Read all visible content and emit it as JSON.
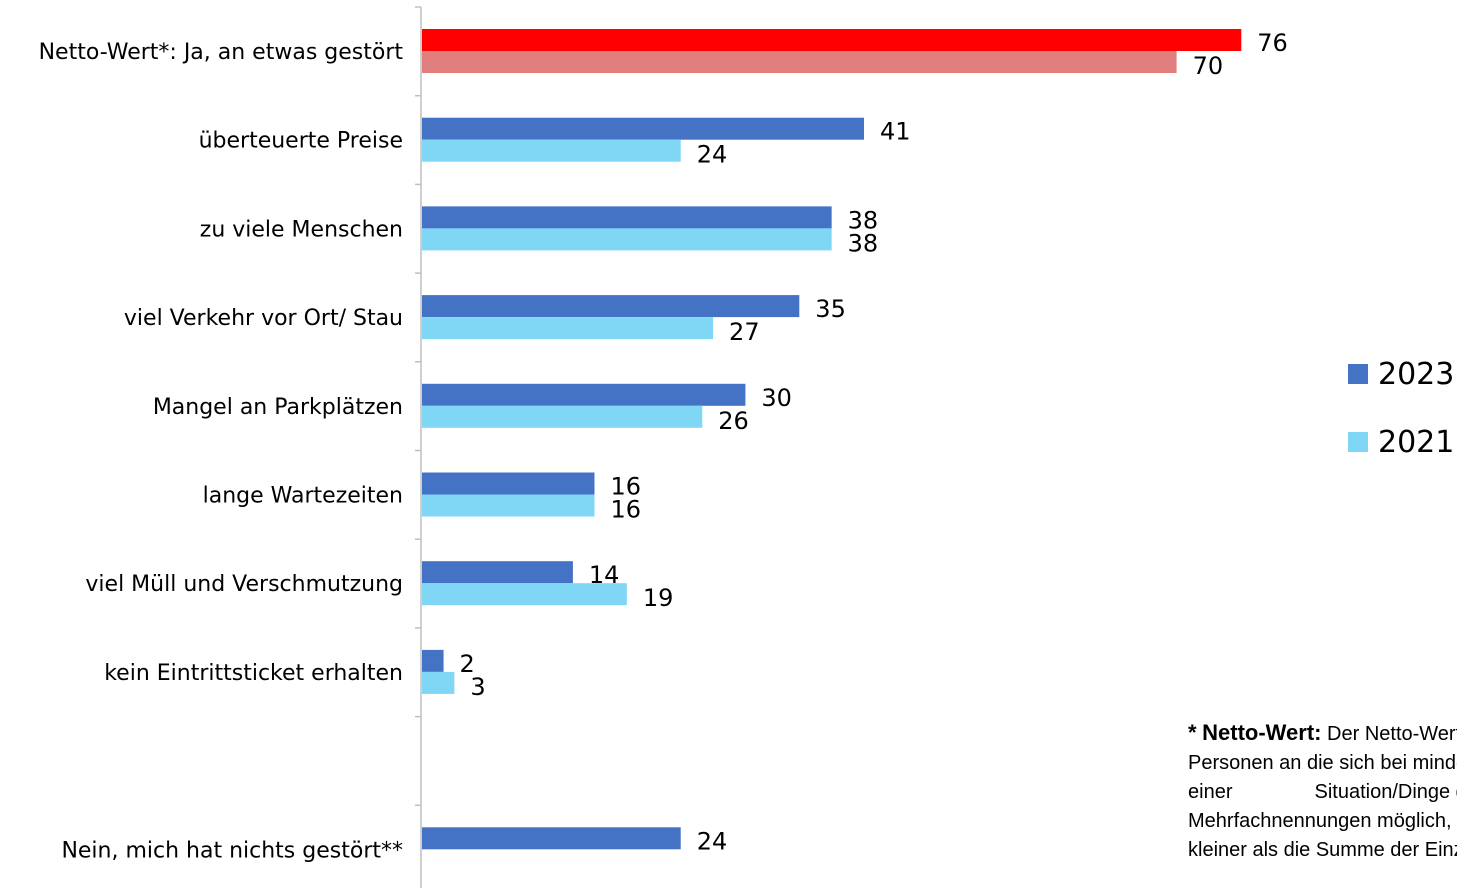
{
  "chart_data": {
    "type": "bar",
    "orientation": "horizontal",
    "categories": [
      "Netto-Wert*: Ja, an etwas gestört",
      "überteuerte Preise",
      "zu viele Menschen",
      "viel Verkehr vor Ort/ Stau",
      "Mangel an Parkplätzen",
      "lange Wartezeiten",
      "viel Müll und Verschmutzung",
      "kein Eintrittsticket erhalten",
      "",
      "Nein, mich hat nichts gestört**"
    ],
    "series": [
      {
        "name": "2023",
        "color": "#4472C4",
        "values": [
          76,
          41,
          38,
          35,
          30,
          16,
          14,
          2,
          null,
          24
        ]
      },
      {
        "name": "2021",
        "color": "#7FD6F5",
        "values": [
          70,
          24,
          38,
          27,
          26,
          16,
          19,
          3,
          null,
          null
        ]
      }
    ],
    "highlight_colors": {
      "2023": "#FF0000",
      "2021": "#E07E7E"
    },
    "highlight_category_index": 0,
    "xlim": [
      0,
      100
    ],
    "legend": "right",
    "grid": false
  },
  "footnote": {
    "star": "*",
    "bold_term": "Netto-Wert:",
    "line1_rest": "Der Netto-Wert gibt den Anteil der",
    "line2": "Personen an die sich bei mindestens",
    "line3_a": "einer",
    "line3_b": "Situation/Dinge gestört fühlten.",
    "line4": "Mehrfachnennungen möglich, daher",
    "line5": "kleiner als die Summe der Einzelwerte."
  }
}
